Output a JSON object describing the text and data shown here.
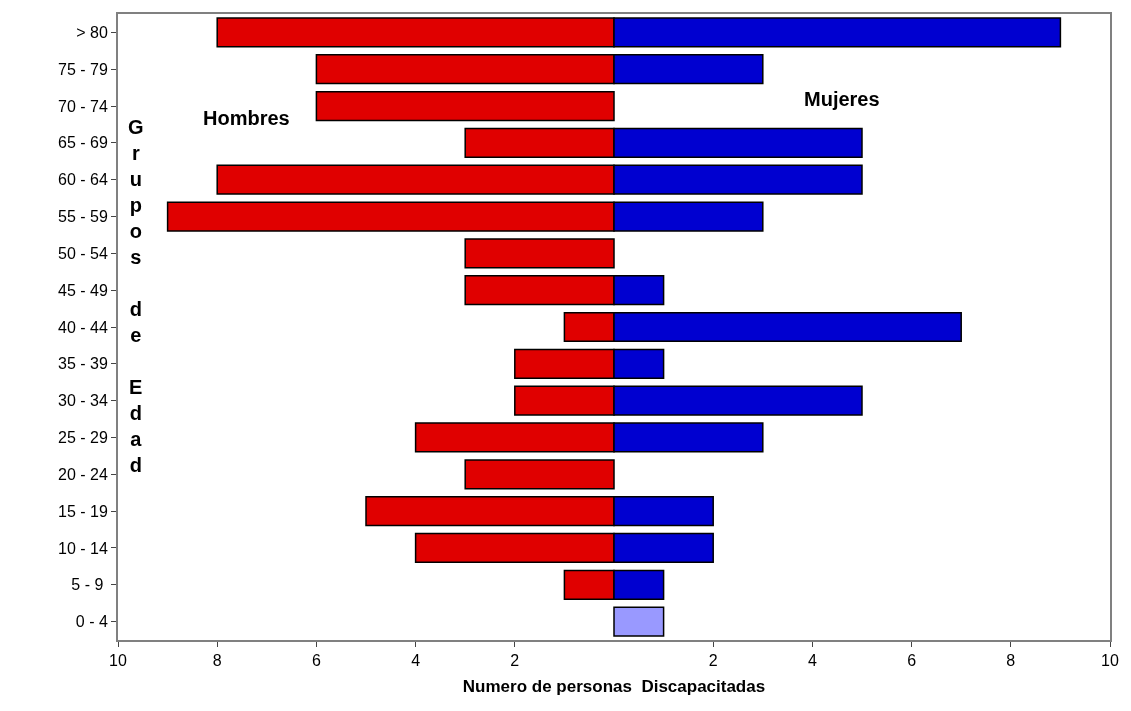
{
  "chart_data": {
    "type": "bar",
    "orientation": "horizontal",
    "stacked": true,
    "xlabel": "Numero de personas  Discapacitadas",
    "ylabel": "Grupos de Edad",
    "categories": [
      "> 80",
      "75 - 79",
      "70 - 74",
      "65 - 69",
      "60 - 64",
      "55 - 59",
      "50 - 54",
      "45 - 49",
      "40 - 44",
      "35 - 39",
      "30 - 34",
      "25 - 29",
      "20 - 24",
      "15 - 19",
      "10 - 14",
      "5 - 9 ",
      "0 - 4"
    ],
    "series": [
      {
        "name": "Hombres",
        "color": "#e00000",
        "values": [
          -8,
          -6,
          -6,
          -3,
          -8,
          -9,
          -3,
          -3,
          -1,
          -2,
          -2,
          -4,
          -3,
          -5,
          -4,
          -1,
          null
        ]
      },
      {
        "name": "Mujeres",
        "color": "#0000d0",
        "colors": [
          "#0000d0",
          "#0000d0",
          "#0000d0",
          "#0000d0",
          "#0000d0",
          "#0000d0",
          "#0000d0",
          "#0000d0",
          "#0000d0",
          "#0000d0",
          "#0000d0",
          "#0000d0",
          "#0000d0",
          "#0000d0",
          "#0000d0",
          "#0000d0",
          "#9999ff"
        ],
        "values": [
          9,
          3,
          null,
          5,
          5,
          3,
          null,
          1,
          7,
          1,
          5,
          3,
          null,
          2,
          2,
          1,
          1
        ]
      }
    ],
    "xlim": [
      -10,
      10
    ],
    "xticks": [
      {
        "value": -10,
        "label": "10"
      },
      {
        "value": -8,
        "label": "8"
      },
      {
        "value": -6,
        "label": "6"
      },
      {
        "value": -4,
        "label": "4"
      },
      {
        "value": -2,
        "label": "2"
      },
      2,
      4,
      6,
      8,
      10
    ],
    "legend": false
  }
}
